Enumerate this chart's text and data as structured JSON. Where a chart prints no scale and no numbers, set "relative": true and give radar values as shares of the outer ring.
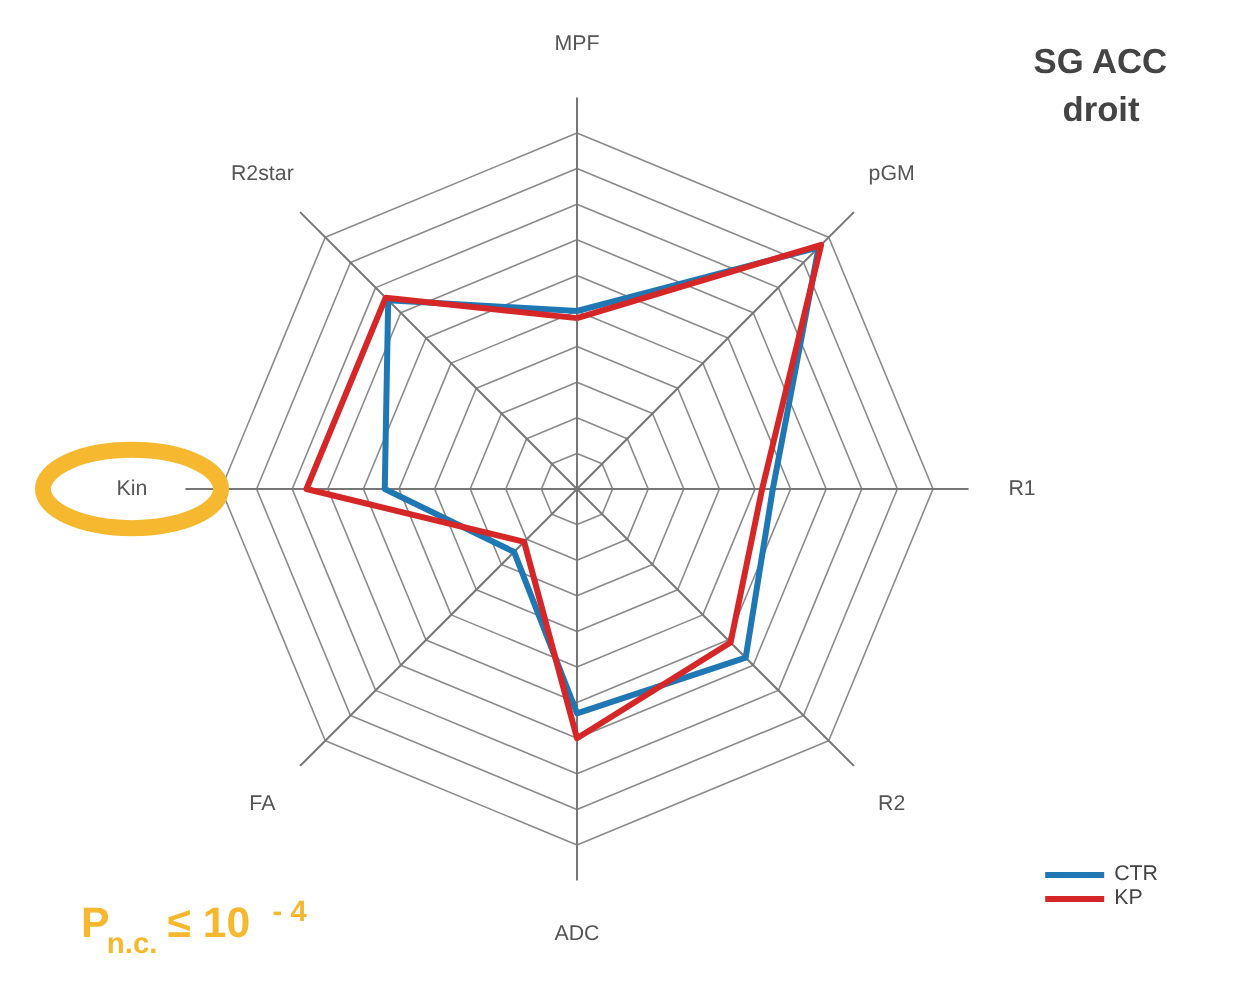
{
  "chart_data": {
    "type": "radar",
    "title": "SG ACC droit",
    "relative": true,
    "grid": true,
    "legend": "bottom right",
    "categories": [
      "MPF",
      "pGM",
      "R1",
      "R2",
      "ADC",
      "FA",
      "Kin",
      "R2star"
    ],
    "series": [
      {
        "name": "CTR",
        "color": "#1f77b4",
        "values": [
          0.5,
          0.96,
          0.55,
          0.67,
          0.63,
          0.25,
          0.54,
          0.75
        ]
      },
      {
        "name": "KP",
        "color": "#d62728",
        "values": [
          0.48,
          0.97,
          0.52,
          0.61,
          0.7,
          0.21,
          0.76,
          0.76
        ]
      }
    ],
    "annotations": [
      "P$_{n.c.}$ ≤ 10$^{- 4}$"
    ]
  }
}
